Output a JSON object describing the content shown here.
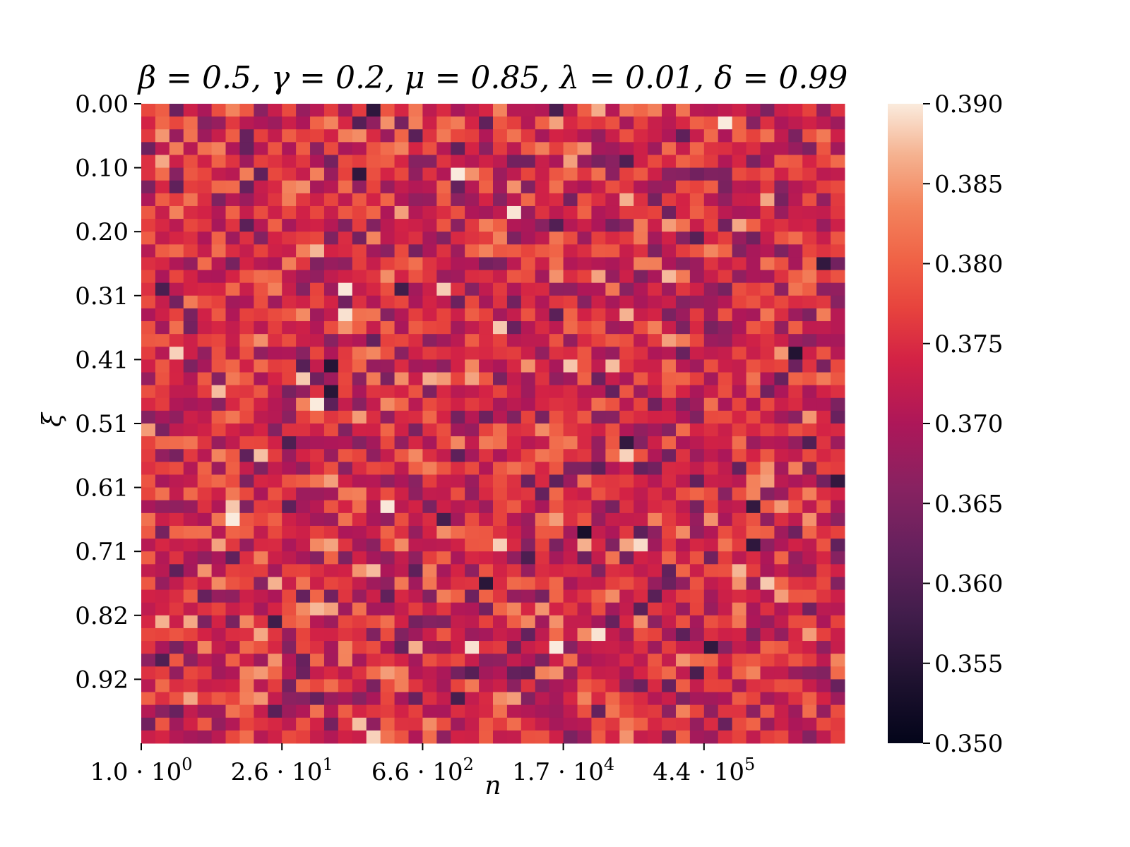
{
  "chart_data": {
    "type": "heatmap",
    "title": "β = 0.5, γ = 0.2, μ = 0.85, λ = 0.01, δ = 0.99",
    "xlabel": "n",
    "ylabel": "ξ",
    "n_cols": 50,
    "n_rows": 50,
    "x_tick_labels": [
      {
        "mantissa": "1.0",
        "exponent": "0",
        "col": 0
      },
      {
        "mantissa": "2.6",
        "exponent": "1",
        "col": 10
      },
      {
        "mantissa": "6.6",
        "exponent": "2",
        "col": 20
      },
      {
        "mantissa": "1.7",
        "exponent": "4",
        "col": 30
      },
      {
        "mantissa": "4.4",
        "exponent": "5",
        "col": 40
      }
    ],
    "y_tick_labels": [
      {
        "label": "0.00",
        "row": 0
      },
      {
        "label": "0.10",
        "row": 5
      },
      {
        "label": "0.20",
        "row": 10
      },
      {
        "label": "0.31",
        "row": 15
      },
      {
        "label": "0.41",
        "row": 20
      },
      {
        "label": "0.51",
        "row": 25
      },
      {
        "label": "0.61",
        "row": 30
      },
      {
        "label": "0.71",
        "row": 35
      },
      {
        "label": "0.82",
        "row": 40
      },
      {
        "label": "0.92",
        "row": 45
      }
    ],
    "colorbar": {
      "vmin": 0.35,
      "vmax": 0.39,
      "ticks": [
        "0.350",
        "0.355",
        "0.360",
        "0.365",
        "0.370",
        "0.375",
        "0.380",
        "0.385",
        "0.390"
      ],
      "colormap": "rocket"
    },
    "value_summary": {
      "approx_mean": 0.374,
      "approx_std": 0.006,
      "note_values": "cell values appear as noise in range 0.350-0.390"
    }
  }
}
